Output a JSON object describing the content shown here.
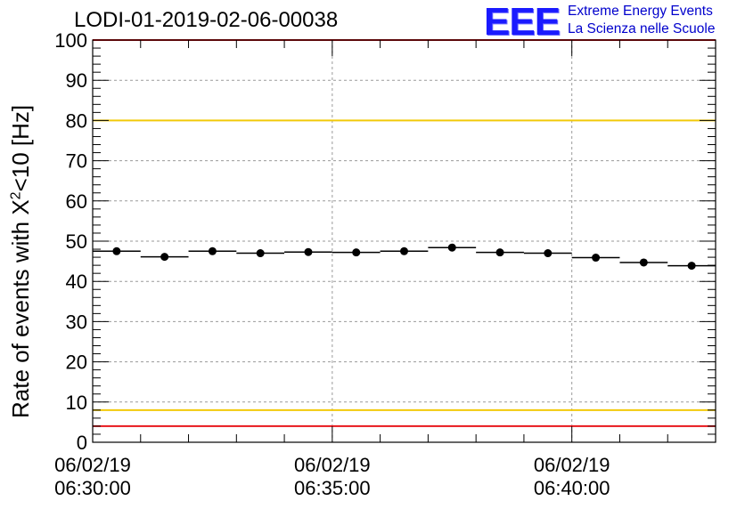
{
  "chart_data": {
    "type": "scatter",
    "title": "LODI-01-2019-02-06-00038",
    "ylabel_prefix": "Rate of events with X",
    "ylabel_sup": "2",
    "ylabel_suffix": "<10 [Hz]",
    "ylim": [
      0,
      100
    ],
    "yticks": [
      0,
      10,
      20,
      30,
      40,
      50,
      60,
      70,
      80,
      90,
      100
    ],
    "xlim_minutes": [
      0,
      13
    ],
    "xtick_labels": [
      {
        "minute": 0,
        "date": "06/02/19",
        "time": "06:30:00"
      },
      {
        "minute": 5,
        "date": "06/02/19",
        "time": "06:35:00"
      },
      {
        "minute": 10,
        "date": "06/02/19",
        "time": "06:40:00"
      }
    ],
    "grid": true,
    "series": [
      {
        "x_minutes": [
          0.5,
          1.5,
          2.5,
          3.5,
          4.5,
          5.5,
          6.5,
          7.5,
          8.5,
          9.5,
          10.5,
          11.5,
          12.5
        ],
        "values": [
          47.5,
          46.1,
          47.5,
          47.0,
          47.3,
          47.2,
          47.5,
          48.4,
          47.2,
          47.0,
          45.9,
          44.7,
          43.9
        ]
      }
    ],
    "reference_lines": [
      {
        "y": 100,
        "color": "#e8161b"
      },
      {
        "y": 80,
        "color": "#f2c90a"
      },
      {
        "y": 8,
        "color": "#f2c90a"
      },
      {
        "y": 4,
        "color": "#e8161b"
      }
    ]
  },
  "logo": {
    "mark": "EEE",
    "line1": "Extreme Energy Events",
    "line2": "La Scienza nelle Scuole"
  },
  "colors": {
    "marker": "#000000",
    "grid": "#9a9a9a",
    "logo": "#1a1aff"
  }
}
